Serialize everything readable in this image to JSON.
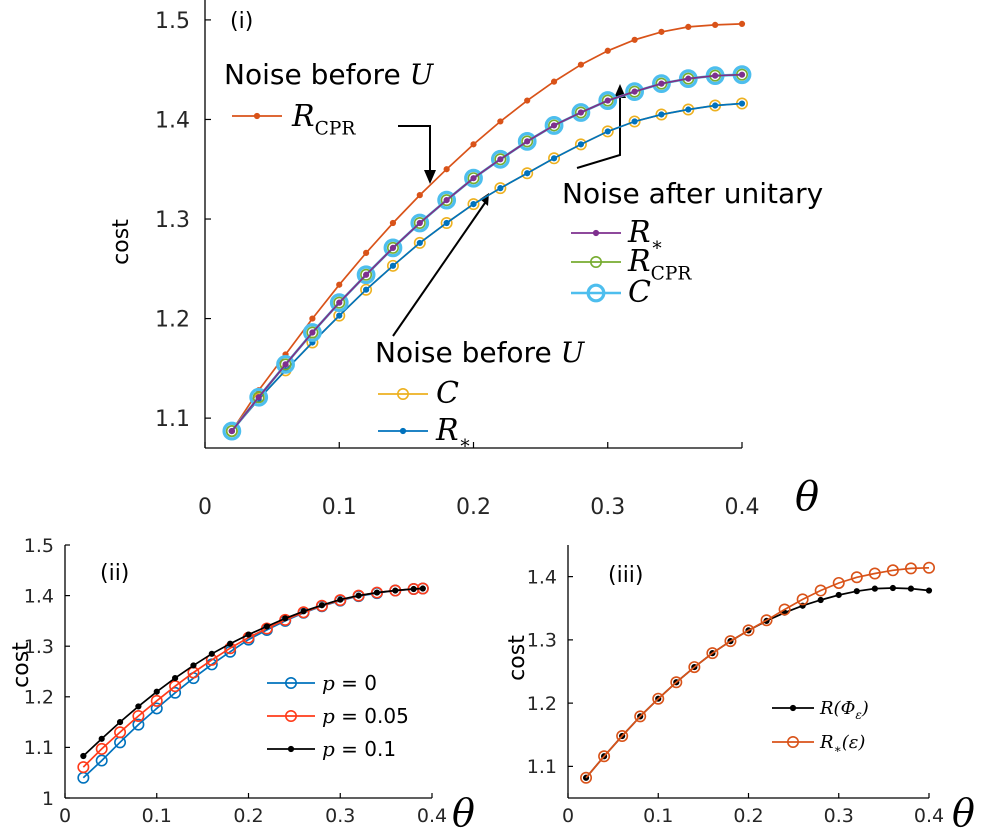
{
  "chart_data": [
    {
      "type": "line",
      "panel_label": "(i)",
      "ylabel": "cost",
      "xlabel": "θ",
      "xlim": [
        0,
        0.4
      ],
      "ylim": [
        1.07,
        1.52
      ],
      "xticks": [
        "0",
        "0.1",
        "0.2",
        "0.3",
        "0.4"
      ],
      "yticks": [
        "1.1",
        "1.2",
        "1.3",
        "1.4",
        "1.5"
      ],
      "grid": false,
      "legend_groups": [
        {
          "title": "Noise before U",
          "title_text": "Noise before ",
          "title_var": "U",
          "entries": [
            {
              "glyph": "R",
              "sub": "CPR",
              "color": "#D95319"
            }
          ]
        },
        {
          "title": "Noise after unitary",
          "title_text": "Noise after unitary",
          "title_var": "",
          "entries": [
            {
              "glyph": "R",
              "sub": "∗",
              "color": "#7E2F8E"
            },
            {
              "glyph": "R",
              "sub": "CPR",
              "color": "#77AC30"
            },
            {
              "glyph": "C",
              "sub": "",
              "color": "#4DBEEE"
            }
          ]
        },
        {
          "title": "Noise before U",
          "title_text": "Noise before ",
          "title_var": "U",
          "entries": [
            {
              "glyph": "C",
              "sub": "",
              "color": "#EDB120"
            },
            {
              "glyph": "R",
              "sub": "∗",
              "color": "#0072BD"
            }
          ]
        }
      ],
      "x": [
        0.02,
        0.04,
        0.06,
        0.08,
        0.1,
        0.12,
        0.14,
        0.16,
        0.18,
        0.2,
        0.22,
        0.24,
        0.26,
        0.28,
        0.3,
        0.32,
        0.34,
        0.36,
        0.38,
        0.4
      ],
      "series": [
        {
          "name": "Noise before U: R_CPR",
          "color": "#D95319",
          "marker": "dot",
          "values": [
            1.087,
            1.128,
            1.164,
            1.2,
            1.234,
            1.266,
            1.296,
            1.324,
            1.35,
            1.375,
            1.398,
            1.419,
            1.438,
            1.455,
            1.469,
            1.48,
            1.488,
            1.493,
            1.495,
            1.496
          ]
        },
        {
          "name": "Noise before U: C",
          "color": "#EDB120",
          "marker": "circle",
          "values": [
            1.087,
            1.119,
            1.148,
            1.176,
            1.203,
            1.229,
            1.253,
            1.276,
            1.296,
            1.315,
            1.331,
            1.346,
            1.361,
            1.375,
            1.388,
            1.398,
            1.405,
            1.41,
            1.414,
            1.416
          ]
        },
        {
          "name": "Noise before U: R_*",
          "color": "#0072BD",
          "marker": "dot",
          "values": [
            1.087,
            1.119,
            1.148,
            1.176,
            1.203,
            1.229,
            1.253,
            1.276,
            1.296,
            1.315,
            1.331,
            1.346,
            1.361,
            1.375,
            1.388,
            1.398,
            1.405,
            1.41,
            1.414,
            1.416
          ]
        },
        {
          "name": "Noise after unitary: C",
          "color": "#4DBEEE",
          "marker": "bigcircle",
          "values": [
            1.087,
            1.121,
            1.154,
            1.186,
            1.216,
            1.244,
            1.271,
            1.296,
            1.319,
            1.341,
            1.36,
            1.378,
            1.394,
            1.407,
            1.419,
            1.428,
            1.436,
            1.441,
            1.444,
            1.445
          ]
        },
        {
          "name": "Noise after unitary: R_CPR",
          "color": "#77AC30",
          "marker": "circle",
          "values": [
            1.087,
            1.121,
            1.154,
            1.186,
            1.216,
            1.244,
            1.271,
            1.296,
            1.319,
            1.341,
            1.36,
            1.378,
            1.394,
            1.407,
            1.419,
            1.428,
            1.436,
            1.441,
            1.444,
            1.445
          ]
        },
        {
          "name": "Noise after unitary: R_*",
          "color": "#7E2F8E",
          "marker": "dot",
          "values": [
            1.087,
            1.121,
            1.154,
            1.186,
            1.216,
            1.244,
            1.271,
            1.296,
            1.319,
            1.341,
            1.36,
            1.378,
            1.394,
            1.407,
            1.419,
            1.428,
            1.436,
            1.441,
            1.444,
            1.445
          ]
        }
      ]
    },
    {
      "type": "line",
      "panel_label": "(ii)",
      "ylabel": "cost",
      "xlabel": "θ",
      "xlim": [
        0,
        0.4
      ],
      "ylim": [
        1.0,
        1.5
      ],
      "xticks": [
        "0",
        "0.1",
        "0.2",
        "0.3",
        "0.4"
      ],
      "yticks": [
        "1",
        "1.1",
        "1.2",
        "1.3",
        "1.4",
        "1.5"
      ],
      "grid": false,
      "legend": "center-right",
      "x": [
        0.02,
        0.04,
        0.06,
        0.08,
        0.1,
        0.12,
        0.14,
        0.16,
        0.18,
        0.2,
        0.22,
        0.24,
        0.26,
        0.28,
        0.3,
        0.32,
        0.34,
        0.36,
        0.38,
        0.39
      ],
      "series": [
        {
          "var": "p",
          "label": "0",
          "color": "#0072BD",
          "marker": "circle",
          "values": [
            1.04,
            1.074,
            1.11,
            1.145,
            1.177,
            1.208,
            1.237,
            1.264,
            1.289,
            1.313,
            1.332,
            1.35,
            1.366,
            1.379,
            1.39,
            1.399,
            1.405,
            1.41,
            1.413,
            1.414
          ]
        },
        {
          "var": "p",
          "label": "0.05",
          "color": "#FF3B1A",
          "marker": "circle",
          "values": [
            1.061,
            1.097,
            1.13,
            1.162,
            1.192,
            1.221,
            1.248,
            1.273,
            1.296,
            1.317,
            1.335,
            1.352,
            1.367,
            1.38,
            1.391,
            1.4,
            1.406,
            1.41,
            1.413,
            1.414
          ]
        },
        {
          "var": "p",
          "label": "0.1",
          "color": "#000000",
          "marker": "dot",
          "values": [
            1.083,
            1.117,
            1.15,
            1.181,
            1.21,
            1.237,
            1.262,
            1.285,
            1.305,
            1.323,
            1.339,
            1.355,
            1.369,
            1.381,
            1.392,
            1.4,
            1.406,
            1.41,
            1.413,
            1.414
          ]
        }
      ]
    },
    {
      "type": "line",
      "panel_label": "(iii)",
      "ylabel": "cost",
      "xlabel": "θ",
      "xlim": [
        0,
        0.4
      ],
      "ylim": [
        1.05,
        1.45
      ],
      "xticks": [
        "0",
        "0.1",
        "0.2",
        "0.3",
        "0.4"
      ],
      "yticks": [
        "1.1",
        "1.2",
        "1.3",
        "1.4"
      ],
      "grid": false,
      "legend": "lower-right",
      "x": [
        0.02,
        0.04,
        0.06,
        0.08,
        0.1,
        0.12,
        0.14,
        0.16,
        0.18,
        0.2,
        0.22,
        0.24,
        0.26,
        0.28,
        0.3,
        0.32,
        0.34,
        0.36,
        0.38,
        0.4
      ],
      "series": [
        {
          "label_main": "R(Φ",
          "label_sub": "ε",
          "label_end": ")",
          "color": "#000000",
          "marker": "dot",
          "values": [
            1.082,
            1.116,
            1.148,
            1.179,
            1.207,
            1.233,
            1.257,
            1.279,
            1.298,
            1.315,
            1.33,
            1.343,
            1.354,
            1.363,
            1.371,
            1.377,
            1.381,
            1.382,
            1.381,
            1.378
          ]
        },
        {
          "label_main": "R",
          "label_sub": "∗",
          "label_end": "(ε)",
          "color": "#D95319",
          "marker": "circle",
          "values": [
            1.082,
            1.116,
            1.148,
            1.179,
            1.207,
            1.233,
            1.257,
            1.279,
            1.298,
            1.315,
            1.331,
            1.348,
            1.364,
            1.378,
            1.39,
            1.399,
            1.405,
            1.41,
            1.413,
            1.414
          ]
        }
      ]
    }
  ]
}
